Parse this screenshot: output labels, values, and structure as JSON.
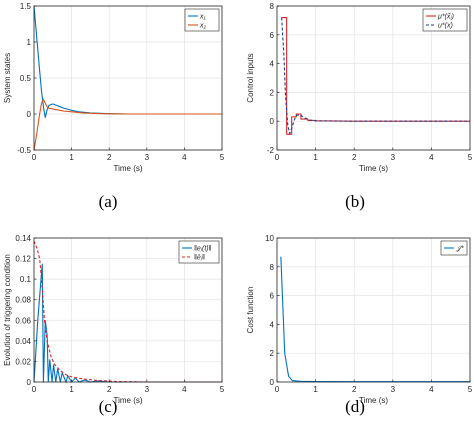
{
  "chart_data": [
    {
      "id": "a",
      "type": "line",
      "caption": "(a)",
      "xlabel": "Time (s)",
      "ylabel": "System states",
      "xlim": [
        0,
        5
      ],
      "ylim": [
        -0.5,
        1.5
      ],
      "xticks": [
        "0",
        "1",
        "2",
        "3",
        "4",
        "5"
      ],
      "yticks": [
        "-0.5",
        "0",
        "0.5",
        "1",
        "1.5"
      ],
      "ytick_values": [
        -0.5,
        0,
        0.5,
        1,
        1.5
      ],
      "xtick_values": [
        0,
        1,
        2,
        3,
        4,
        5
      ],
      "grid": true,
      "legend_position": "top-right",
      "series": [
        {
          "name": "x₁",
          "color": "#0072BD",
          "dash": "solid",
          "points": [
            [
              0,
              1.5
            ],
            [
              0.05,
              1.2
            ],
            [
              0.1,
              0.9
            ],
            [
              0.15,
              0.6
            ],
            [
              0.2,
              0.32
            ],
            [
              0.25,
              0.1
            ],
            [
              0.3,
              -0.05
            ],
            [
              0.35,
              0.06
            ],
            [
              0.4,
              0.12
            ],
            [
              0.5,
              0.14
            ],
            [
              0.6,
              0.12
            ],
            [
              0.7,
              0.1
            ],
            [
              0.8,
              0.08
            ],
            [
              1.0,
              0.05
            ],
            [
              1.2,
              0.03
            ],
            [
              1.5,
              0.015
            ],
            [
              2.0,
              0.005
            ],
            [
              2.5,
              0
            ],
            [
              5,
              0
            ]
          ]
        },
        {
          "name": "x₂",
          "color": "#D95319",
          "dash": "solid",
          "points": [
            [
              0,
              -0.5
            ],
            [
              0.05,
              -0.35
            ],
            [
              0.1,
              -0.18
            ],
            [
              0.15,
              0.0
            ],
            [
              0.2,
              0.15
            ],
            [
              0.25,
              0.2
            ],
            [
              0.3,
              0.15
            ],
            [
              0.35,
              0.1
            ],
            [
              0.4,
              0.08
            ],
            [
              0.5,
              0.07
            ],
            [
              0.6,
              0.06
            ],
            [
              0.8,
              0.04
            ],
            [
              1.0,
              0.03
            ],
            [
              1.3,
              0.015
            ],
            [
              1.8,
              0.005
            ],
            [
              2.5,
              0
            ],
            [
              5,
              0
            ]
          ]
        }
      ]
    },
    {
      "id": "b",
      "type": "line",
      "caption": "(b)",
      "xlabel": "Time (s)",
      "ylabel": "Control inputs",
      "xlim": [
        0,
        5
      ],
      "ylim": [
        -2,
        8
      ],
      "xticks": [
        "0",
        "1",
        "2",
        "3",
        "4",
        "5"
      ],
      "yticks": [
        "-2",
        "0",
        "2",
        "4",
        "6",
        "8"
      ],
      "ytick_values": [
        -2,
        0,
        2,
        4,
        6,
        8
      ],
      "xtick_values": [
        0,
        1,
        2,
        3,
        4,
        5
      ],
      "grid": true,
      "legend_position": "top-right",
      "series": [
        {
          "name": "μ*(x̂ⱼ)",
          "color": "#D62728",
          "dash": "solid",
          "points": [
            [
              0.12,
              7.2
            ],
            [
              0.25,
              7.2
            ],
            [
              0.25,
              -0.9
            ],
            [
              0.38,
              -0.9
            ],
            [
              0.38,
              0.3
            ],
            [
              0.5,
              0.3
            ],
            [
              0.5,
              0.5
            ],
            [
              0.62,
              0.5
            ],
            [
              0.62,
              0.15
            ],
            [
              0.8,
              0.15
            ],
            [
              0.8,
              0.05
            ],
            [
              1.0,
              0.05
            ],
            [
              1.0,
              0.02
            ],
            [
              1.5,
              0.02
            ],
            [
              2.0,
              0
            ],
            [
              5,
              0
            ]
          ]
        },
        {
          "name": "u*(x)",
          "color": "#1F3B8F",
          "dash": "dashed",
          "points": [
            [
              0.12,
              7.2
            ],
            [
              0.18,
              4.5
            ],
            [
              0.22,
              1.8
            ],
            [
              0.28,
              -0.3
            ],
            [
              0.33,
              -0.85
            ],
            [
              0.38,
              -0.5
            ],
            [
              0.45,
              0.1
            ],
            [
              0.5,
              0.4
            ],
            [
              0.6,
              0.45
            ],
            [
              0.7,
              0.25
            ],
            [
              0.85,
              0.08
            ],
            [
              1.0,
              0.03
            ],
            [
              1.5,
              0.01
            ],
            [
              2.0,
              0
            ],
            [
              5,
              0
            ]
          ]
        }
      ]
    },
    {
      "id": "c",
      "type": "line",
      "caption": "(c)",
      "xlabel": "Time (s)",
      "ylabel": "Evolution of triggering condition",
      "xlim": [
        0,
        5
      ],
      "ylim": [
        0,
        0.14
      ],
      "xticks": [
        "0",
        "1",
        "2",
        "3",
        "4",
        "5"
      ],
      "yticks": [
        "0",
        "0.02",
        "0.04",
        "0.06",
        "0.08",
        "0.1",
        "0.12",
        "0.14"
      ],
      "ytick_values": [
        0,
        0.02,
        0.04,
        0.06,
        0.08,
        0.1,
        0.12,
        0.14
      ],
      "xtick_values": [
        0,
        1,
        2,
        3,
        4,
        5
      ],
      "grid": true,
      "legend_position": "top-right",
      "series": [
        {
          "name": "‖eⱼ(t)‖",
          "color": "#0072BD",
          "dash": "solid",
          "points": [
            [
              0,
              0
            ],
            [
              0.1,
              0.06
            ],
            [
              0.22,
              0.115
            ],
            [
              0.25,
              0
            ],
            [
              0.3,
              0.06
            ],
            [
              0.35,
              0.045
            ],
            [
              0.38,
              0
            ],
            [
              0.42,
              0.022
            ],
            [
              0.48,
              0
            ],
            [
              0.52,
              0.017
            ],
            [
              0.58,
              0
            ],
            [
              0.63,
              0.013
            ],
            [
              0.7,
              0
            ],
            [
              0.75,
              0.009
            ],
            [
              0.85,
              0
            ],
            [
              0.9,
              0.006
            ],
            [
              1.0,
              0
            ],
            [
              1.1,
              0.004
            ],
            [
              1.2,
              0
            ],
            [
              1.35,
              0.002
            ],
            [
              1.5,
              0
            ],
            [
              1.7,
              0.001
            ],
            [
              2.0,
              0
            ],
            [
              5,
              0
            ]
          ]
        },
        {
          "name": "‖ēⱼ‖",
          "color": "#D62728",
          "dash": "dashed",
          "points": [
            [
              0,
              0.137
            ],
            [
              0.08,
              0.13
            ],
            [
              0.15,
              0.12
            ],
            [
              0.2,
              0.1
            ],
            [
              0.28,
              0.06
            ],
            [
              0.35,
              0.04
            ],
            [
              0.45,
              0.025
            ],
            [
              0.55,
              0.017
            ],
            [
              0.7,
              0.011
            ],
            [
              0.85,
              0.007
            ],
            [
              1.0,
              0.005
            ],
            [
              1.3,
              0.003
            ],
            [
              1.7,
              0.0015
            ],
            [
              2.2,
              0.0005
            ],
            [
              3.0,
              0
            ],
            [
              5,
              0
            ]
          ]
        }
      ]
    },
    {
      "id": "d",
      "type": "line",
      "caption": "(d)",
      "xlabel": "Time (s)",
      "ylabel": "Cost function",
      "xlim": [
        0,
        5
      ],
      "ylim": [
        0,
        10
      ],
      "xticks": [
        "0",
        "1",
        "2",
        "3",
        "4",
        "5"
      ],
      "yticks": [
        "0",
        "2",
        "4",
        "6",
        "8",
        "10"
      ],
      "ytick_values": [
        0,
        2,
        4,
        6,
        8,
        10
      ],
      "xtick_values": [
        0,
        1,
        2,
        3,
        4,
        5
      ],
      "grid": true,
      "legend_position": "top-right",
      "series": [
        {
          "name": "𝒥*",
          "color": "#0072BD",
          "dash": "solid",
          "points": [
            [
              0.1,
              8.7
            ],
            [
              0.2,
              2.0
            ],
            [
              0.3,
              0.4
            ],
            [
              0.4,
              0.1
            ],
            [
              0.6,
              0.05
            ],
            [
              1.0,
              0.03
            ],
            [
              2.0,
              0.02
            ],
            [
              5,
              0.02
            ]
          ]
        }
      ]
    }
  ]
}
